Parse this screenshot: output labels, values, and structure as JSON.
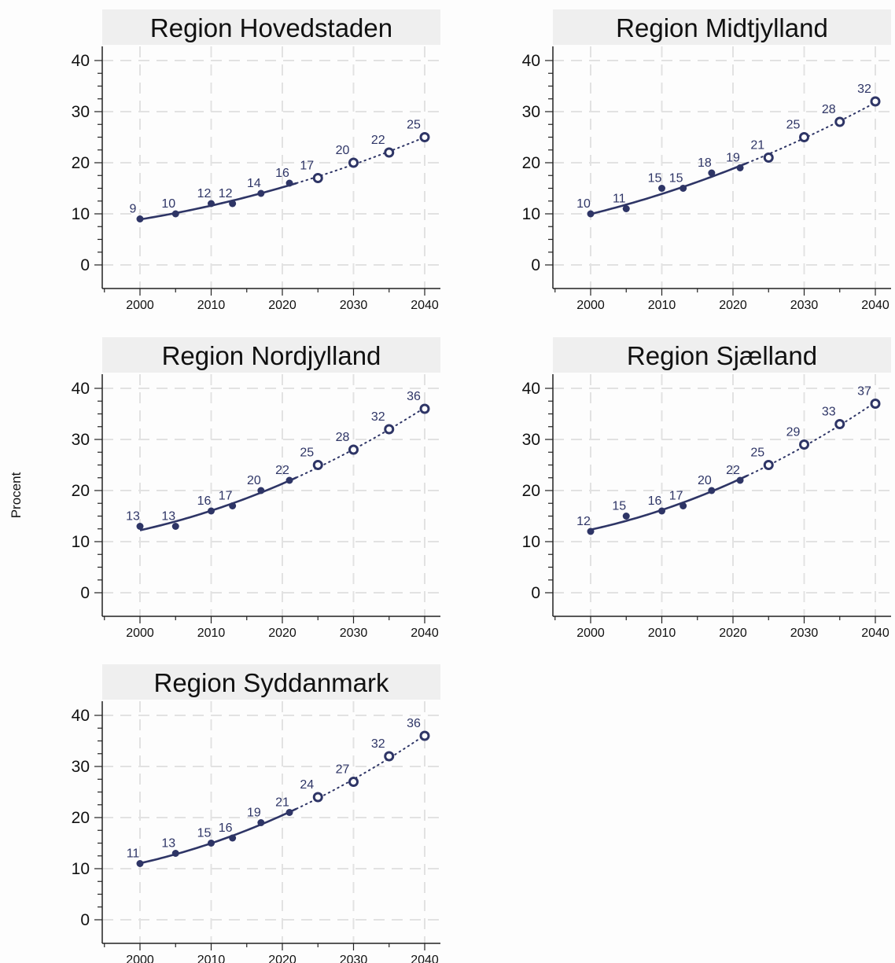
{
  "chart_data": {
    "type": "line",
    "ylabel": "Procent",
    "ylim": [
      0,
      40
    ],
    "yticks": [
      0,
      10,
      20,
      30,
      40
    ],
    "xlim": [
      1995,
      2042
    ],
    "xticks": [
      2000,
      2010,
      2020,
      2030,
      2040
    ],
    "grid": true,
    "colors": {
      "series": "#2e3566",
      "title_bg": "#efefef",
      "grid": "#e2e2e2",
      "axis": "#222222"
    },
    "panels": [
      {
        "title": "Region Hovedstaden",
        "observed": {
          "x": [
            2000,
            2005,
            2010,
            2013,
            2017,
            2021
          ],
          "y": [
            9,
            10,
            12,
            12,
            14,
            16
          ]
        },
        "projected": {
          "x": [
            2025,
            2030,
            2035,
            2040
          ],
          "y": [
            17,
            20,
            22,
            25
          ]
        }
      },
      {
        "title": "Region Midtjylland",
        "observed": {
          "x": [
            2000,
            2005,
            2010,
            2013,
            2017,
            2021
          ],
          "y": [
            10,
            11,
            15,
            15,
            18,
            19
          ]
        },
        "projected": {
          "x": [
            2025,
            2030,
            2035,
            2040
          ],
          "y": [
            21,
            25,
            28,
            32
          ]
        }
      },
      {
        "title": "Region Nordjylland",
        "observed": {
          "x": [
            2000,
            2005,
            2010,
            2013,
            2017,
            2021
          ],
          "y": [
            13,
            13,
            16,
            17,
            20,
            22
          ]
        },
        "projected": {
          "x": [
            2025,
            2030,
            2035,
            2040
          ],
          "y": [
            25,
            28,
            32,
            36
          ]
        }
      },
      {
        "title": "Region Sjælland",
        "observed": {
          "x": [
            2000,
            2005,
            2010,
            2013,
            2017,
            2021
          ],
          "y": [
            12,
            15,
            16,
            17,
            20,
            22
          ]
        },
        "projected": {
          "x": [
            2025,
            2030,
            2035,
            2040
          ],
          "y": [
            25,
            29,
            33,
            37
          ]
        }
      },
      {
        "title": "Region Syddanmark",
        "observed": {
          "x": [
            2000,
            2005,
            2010,
            2013,
            2017,
            2021
          ],
          "y": [
            11,
            13,
            15,
            16,
            19,
            21
          ]
        },
        "projected": {
          "x": [
            2025,
            2030,
            2035,
            2040
          ],
          "y": [
            24,
            27,
            32,
            36
          ]
        }
      }
    ]
  }
}
